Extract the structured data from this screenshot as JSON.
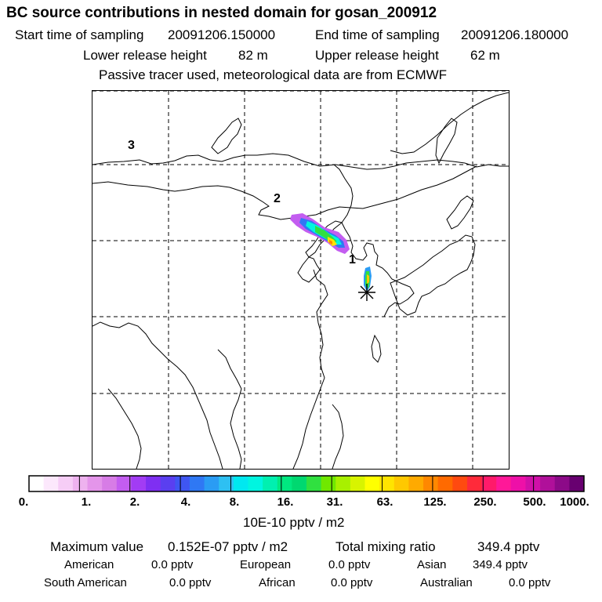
{
  "header": {
    "title": "BC  source contributions in nested domain for gosan_200912",
    "start_label": "Start time of sampling",
    "start_value": "20091206.150000",
    "end_label": "End time of sampling",
    "end_value": "20091206.180000",
    "lower_label": "Lower release height",
    "lower_value": "82 m",
    "upper_label": "Upper release height",
    "upper_value": "62 m",
    "tracer_note": "Passive tracer used, meteorological data are from ECMWF"
  },
  "map": {
    "region_labels": [
      "3",
      "2",
      "1"
    ],
    "grid_lines": {
      "vertical": 4,
      "horizontal": 4
    },
    "receptor": "gosan"
  },
  "colorbar": {
    "tick_labels": [
      "0.",
      "1.",
      "2.",
      "4.",
      "8.",
      "16.",
      "31.",
      "63.",
      "125.",
      "250.",
      "500.",
      "1000."
    ],
    "unit": "10E-10 pptv / m2",
    "colors": [
      "#ffffff",
      "#fce8fc",
      "#f6cdf6",
      "#eeb2ef",
      "#e495ea",
      "#d77ce6",
      "#c35df0",
      "#a23cf4",
      "#7f2ff2",
      "#5a3ff0",
      "#3f56f2",
      "#2f78f4",
      "#2a9cf4",
      "#2ec0f2",
      "#00e8f0",
      "#00f5e0",
      "#00f0b0",
      "#00e880",
      "#00d870",
      "#30e040",
      "#70e800",
      "#a8f000",
      "#d8f400",
      "#ffff00",
      "#ffe400",
      "#ffc800",
      "#ffaa00",
      "#ff8800",
      "#ff6a00",
      "#ff4a10",
      "#ff2a3a",
      "#ff1a6a",
      "#ff1898",
      "#ee10a8",
      "#d010a8",
      "#b0109a",
      "#8c0a88",
      "#680070"
    ]
  },
  "summary": {
    "max_label": "Maximum value",
    "max_value": "0.152E-07 pptv / m2",
    "total_label": "Total mixing ratio",
    "total_value": "349.4 pptv",
    "regions": [
      {
        "name": "American",
        "value": "0.0 pptv"
      },
      {
        "name": "European",
        "value": "0.0 pptv"
      },
      {
        "name": "Asian",
        "value": "349.4 pptv"
      },
      {
        "name": "South American",
        "value": "0.0 pptv"
      },
      {
        "name": "African",
        "value": "0.0 pptv"
      },
      {
        "name": "Australian",
        "value": "0.0 pptv"
      }
    ]
  }
}
